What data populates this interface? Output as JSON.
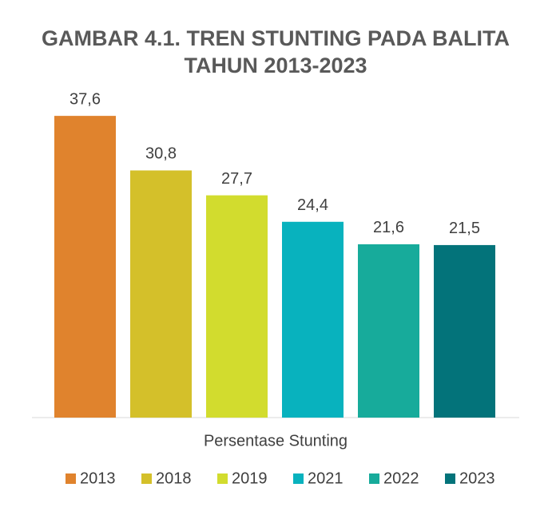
{
  "chart_data": {
    "type": "bar",
    "title": [
      "GAMBAR 4.1.  TREN STUNTING PADA BALITA",
      "TAHUN 2013-2023"
    ],
    "categories": [
      "Persentase Stunting"
    ],
    "ylim": [
      0,
      40
    ],
    "series": [
      {
        "name": "2013",
        "color": "#e0832d",
        "values": [
          37.6
        ],
        "value_labels": [
          "37,6"
        ]
      },
      {
        "name": "2018",
        "color": "#d4c02a",
        "values": [
          30.8
        ],
        "value_labels": [
          "30,8"
        ]
      },
      {
        "name": "2019",
        "color": "#d2dc2e",
        "values": [
          27.7
        ],
        "value_labels": [
          "27,7"
        ]
      },
      {
        "name": "2021",
        "color": "#08b2be",
        "values": [
          24.4
        ],
        "value_labels": [
          "24,4"
        ]
      },
      {
        "name": "2022",
        "color": "#17ab9b",
        "values": [
          21.6
        ],
        "value_labels": [
          "21,6"
        ]
      },
      {
        "name": "2023",
        "color": "#03737a",
        "values": [
          21.5
        ],
        "value_labels": [
          "21,5"
        ]
      }
    ]
  }
}
